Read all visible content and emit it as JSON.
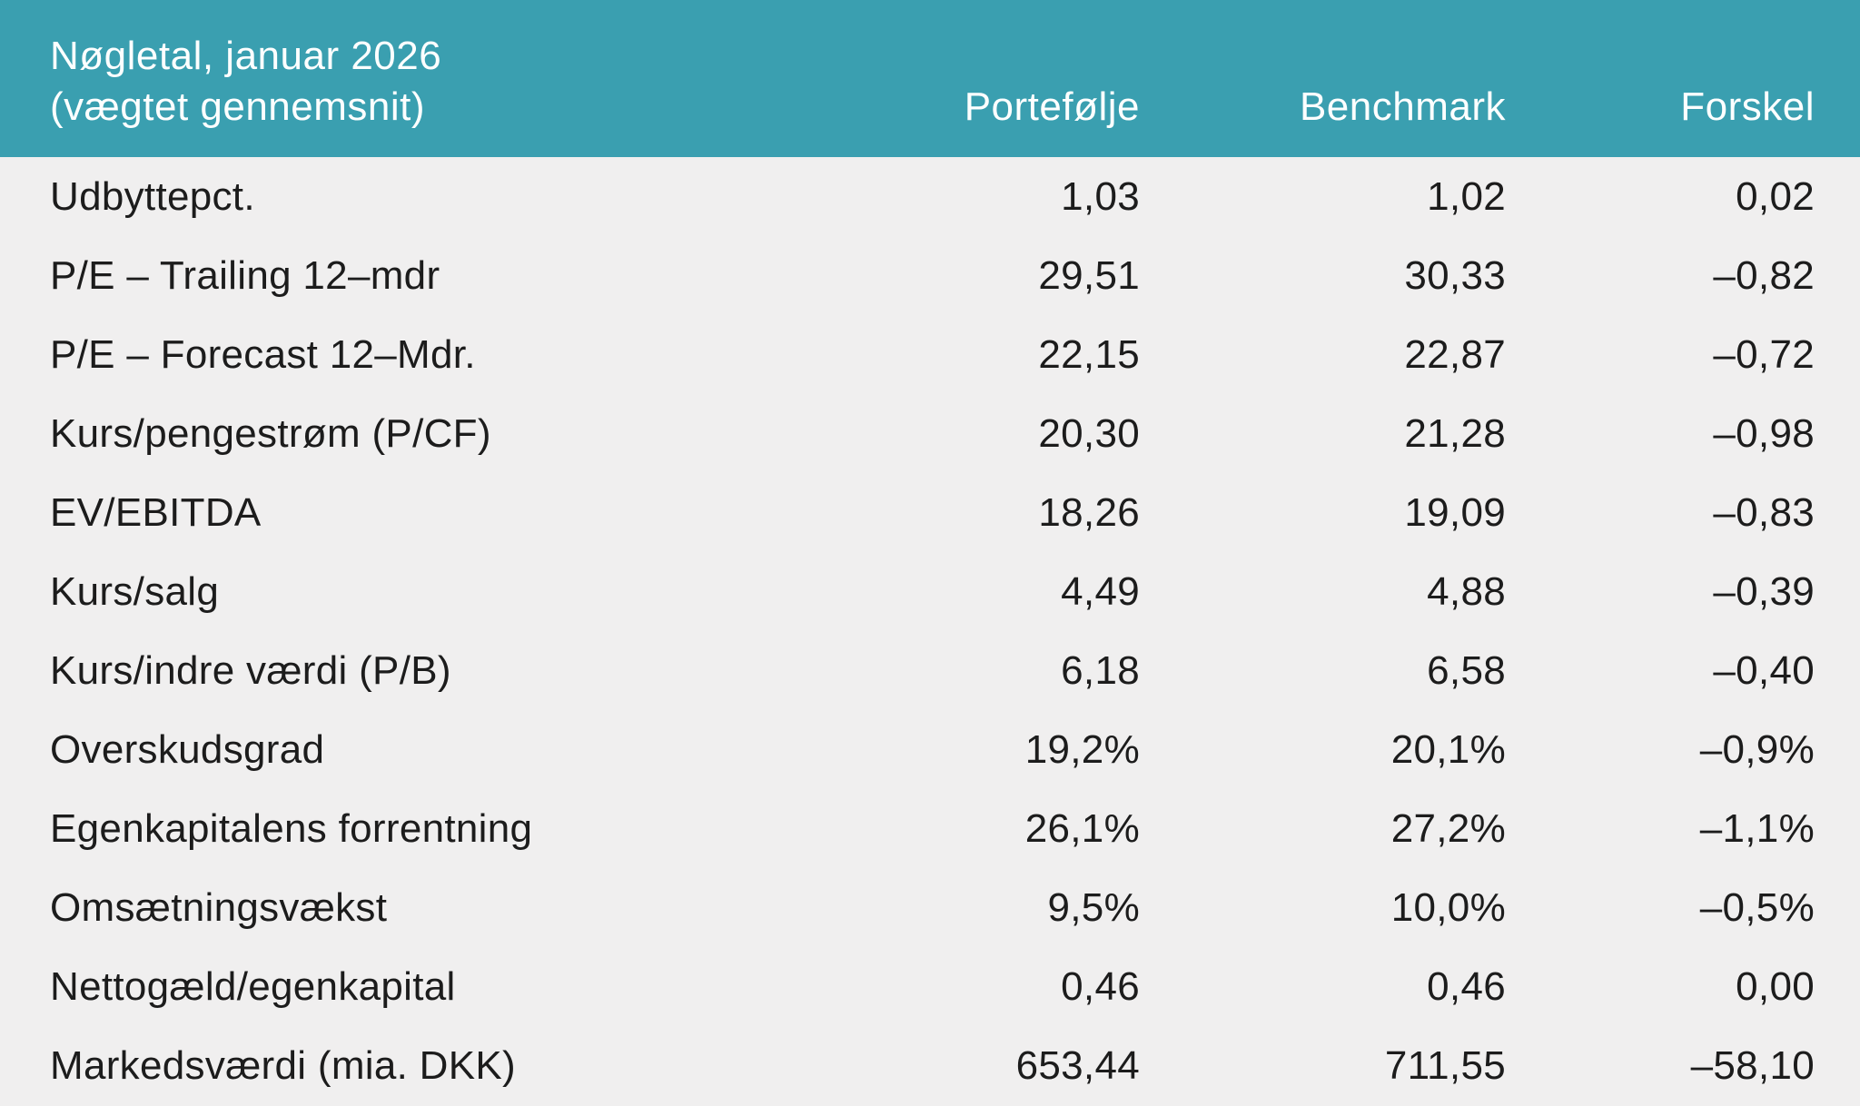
{
  "chart_data": {
    "type": "table",
    "title_line1": "Nøgletal, januar 2026",
    "title_line2": "(vægtet gennemsnit)",
    "columns": [
      "Portefølje",
      "Benchmark",
      "Forskel"
    ],
    "rows": [
      {
        "label": "Udbyttepct.",
        "values": [
          "1,03",
          "1,02",
          "0,02"
        ]
      },
      {
        "label": "P/E – Trailing 12–mdr",
        "values": [
          "29,51",
          "30,33",
          "–0,82"
        ]
      },
      {
        "label": "P/E – Forecast 12–Mdr.",
        "values": [
          "22,15",
          "22,87",
          "–0,72"
        ]
      },
      {
        "label": "Kurs/pengestrøm (P/CF)",
        "values": [
          "20,30",
          "21,28",
          "–0,98"
        ]
      },
      {
        "label": "EV/EBITDA",
        "values": [
          "18,26",
          "19,09",
          "–0,83"
        ]
      },
      {
        "label": "Kurs/salg",
        "values": [
          "4,49",
          "4,88",
          "–0,39"
        ]
      },
      {
        "label": "Kurs/indre værdi (P/B)",
        "values": [
          "6,18",
          "6,58",
          "–0,40"
        ]
      },
      {
        "label": "Overskudsgrad",
        "values": [
          "19,2%",
          "20,1%",
          "–0,9%"
        ]
      },
      {
        "label": "Egenkapitalens forrentning",
        "values": [
          "26,1%",
          "27,2%",
          "–1,1%"
        ]
      },
      {
        "label": "Omsætningsvækst",
        "values": [
          "9,5%",
          "10,0%",
          "–0,5%"
        ]
      },
      {
        "label": "Nettogæld/egenkapital",
        "values": [
          "0,46",
          "0,46",
          "0,00"
        ]
      },
      {
        "label": "Markedsværdi (mia. DKK)",
        "values": [
          "653,44",
          "711,55",
          "–58,10"
        ]
      }
    ],
    "layout": {
      "header_rows": 2,
      "numeric_columns_right_aligned": true,
      "gridlines": "none"
    },
    "colors": {
      "header_bg": "#3A9FB0",
      "header_text": "#FDFFFF",
      "body_bg": "#F0EFEF",
      "body_text": "#1C1C1C"
    }
  }
}
